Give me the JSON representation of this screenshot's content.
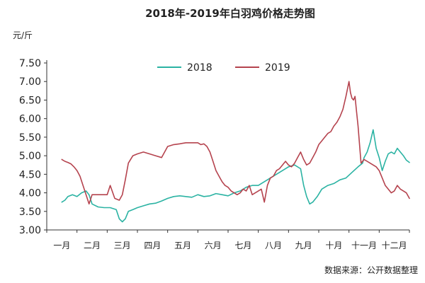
{
  "chart_data": {
    "type": "line",
    "title": "2018年-2019年白羽鸡价格走势图",
    "ylabel": "元/斤",
    "xlabel": "",
    "ylim": [
      3.0,
      7.5
    ],
    "yticks": [
      "7.50",
      "7.00",
      "6.50",
      "6.00",
      "5.50",
      "5.00",
      "4.50",
      "4.00",
      "3.50",
      "3.00"
    ],
    "categories": [
      "一月",
      "二月",
      "三月",
      "四月",
      "五月",
      "六月",
      "七月",
      "八月",
      "九月",
      "十月",
      "十一月",
      "十二月"
    ],
    "legend_position": "top-center",
    "grid": false,
    "source": "数据来源：公开数据整理",
    "series": [
      {
        "name": "2018",
        "color": "#2bb3a3",
        "x": [
          0.0,
          0.1,
          0.2,
          0.35,
          0.5,
          0.65,
          0.8,
          0.9,
          1.0,
          1.2,
          1.4,
          1.6,
          1.8,
          1.9,
          2.0,
          2.1,
          2.2,
          2.35,
          2.5,
          2.7,
          2.9,
          3.1,
          3.3,
          3.5,
          3.7,
          3.9,
          4.1,
          4.3,
          4.5,
          4.7,
          4.9,
          5.1,
          5.3,
          5.5,
          5.7,
          5.9,
          6.1,
          6.3,
          6.5,
          6.7,
          6.9,
          7.1,
          7.3,
          7.5,
          7.7,
          7.9,
          8.0,
          8.1,
          8.2,
          8.3,
          8.45,
          8.6,
          8.8,
          9.0,
          9.2,
          9.4,
          9.6,
          9.8,
          9.95,
          10.0,
          10.1,
          10.2,
          10.3,
          10.4,
          10.5,
          10.6,
          10.7,
          10.8,
          10.9,
          11.0,
          11.1,
          11.2,
          11.3,
          11.4,
          11.5
        ],
        "values": [
          3.75,
          3.8,
          3.9,
          3.95,
          3.9,
          4.0,
          4.05,
          3.95,
          3.7,
          3.62,
          3.6,
          3.6,
          3.55,
          3.3,
          3.22,
          3.3,
          3.5,
          3.55,
          3.6,
          3.65,
          3.7,
          3.72,
          3.78,
          3.85,
          3.9,
          3.92,
          3.9,
          3.88,
          3.95,
          3.9,
          3.92,
          3.98,
          3.95,
          3.92,
          4.0,
          4.05,
          4.15,
          4.2,
          4.2,
          4.3,
          4.4,
          4.5,
          4.6,
          4.7,
          4.75,
          4.65,
          4.2,
          3.9,
          3.7,
          3.75,
          3.9,
          4.1,
          4.2,
          4.25,
          4.35,
          4.4,
          4.55,
          4.7,
          4.8,
          4.95,
          5.1,
          5.35,
          5.7,
          5.2,
          4.95,
          4.6,
          4.85,
          5.05,
          5.1,
          5.05,
          5.2,
          5.1,
          5.0,
          4.88,
          4.82
        ]
      },
      {
        "name": "2019",
        "color": "#b5434e",
        "x": [
          0.0,
          0.1,
          0.2,
          0.3,
          0.4,
          0.5,
          0.6,
          0.7,
          0.8,
          0.9,
          1.0,
          1.1,
          1.2,
          1.35,
          1.5,
          1.6,
          1.75,
          1.9,
          2.0,
          2.1,
          2.2,
          2.35,
          2.5,
          2.7,
          2.9,
          3.1,
          3.3,
          3.5,
          3.7,
          3.9,
          4.1,
          4.3,
          4.5,
          4.6,
          4.7,
          4.8,
          4.9,
          5.0,
          5.1,
          5.2,
          5.3,
          5.4,
          5.5,
          5.6,
          5.7,
          5.8,
          5.9,
          6.0,
          6.1,
          6.2,
          6.3,
          6.4,
          6.5,
          6.6,
          6.7,
          6.8,
          6.9,
          7.0,
          7.1,
          7.2,
          7.3,
          7.4,
          7.5,
          7.6,
          7.7,
          7.8,
          7.9,
          8.0,
          8.1,
          8.2,
          8.3,
          8.4,
          8.5,
          8.6,
          8.7,
          8.8,
          8.9,
          9.0,
          9.1,
          9.2,
          9.3,
          9.4,
          9.5,
          9.55,
          9.6,
          9.65,
          9.7,
          9.75,
          9.8,
          9.85,
          9.9,
          10.0,
          10.1,
          10.2,
          10.3,
          10.4,
          10.5,
          10.6,
          10.7,
          10.8,
          10.9,
          11.0,
          11.1,
          11.2,
          11.3,
          11.4,
          11.5
        ],
        "values": [
          4.9,
          4.85,
          4.82,
          4.78,
          4.7,
          4.6,
          4.45,
          4.2,
          3.95,
          3.7,
          3.95,
          3.95,
          3.95,
          3.95,
          3.95,
          4.2,
          3.85,
          3.8,
          3.95,
          4.35,
          4.8,
          5.0,
          5.05,
          5.1,
          5.05,
          5.0,
          4.95,
          5.25,
          5.3,
          5.32,
          5.35,
          5.35,
          5.35,
          5.3,
          5.32,
          5.25,
          5.1,
          4.85,
          4.6,
          4.45,
          4.3,
          4.2,
          4.15,
          4.05,
          4.0,
          3.95,
          4.0,
          4.1,
          4.05,
          4.2,
          3.95,
          4.0,
          4.05,
          4.1,
          3.75,
          4.2,
          4.4,
          4.45,
          4.6,
          4.65,
          4.75,
          4.85,
          4.75,
          4.7,
          4.8,
          4.95,
          5.1,
          4.9,
          4.75,
          4.8,
          4.95,
          5.1,
          5.3,
          5.4,
          5.5,
          5.6,
          5.65,
          5.8,
          5.9,
          6.05,
          6.25,
          6.6,
          7.0,
          6.7,
          6.55,
          6.5,
          6.6,
          6.2,
          5.8,
          5.3,
          4.8,
          4.9,
          4.85,
          4.8,
          4.75,
          4.7,
          4.6,
          4.4,
          4.2,
          4.1,
          4.0,
          4.05,
          4.2,
          4.1,
          4.05,
          4.0,
          3.85
        ]
      }
    ]
  }
}
